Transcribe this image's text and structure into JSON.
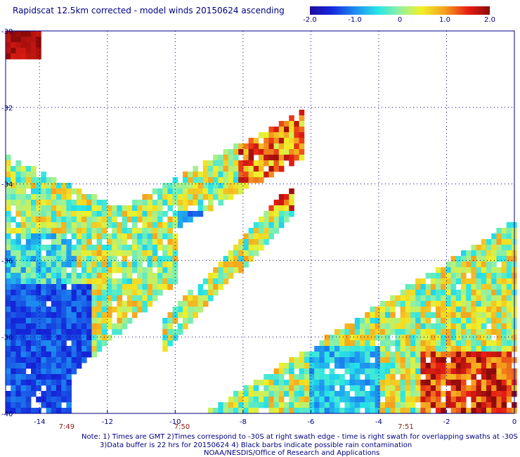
{
  "title": "Rapidscat 12.5km corrected - model winds 20150624 ascending",
  "colorbar": {
    "min": -2.0,
    "max": 2.0,
    "tick_labels": [
      "-2.0",
      "-1.0",
      "0",
      "1.0",
      "2.0"
    ],
    "tick_values": [
      -2.0,
      -1.0,
      0,
      1.0,
      2.0
    ]
  },
  "notes": {
    "line1": "Note: 1) Times are GMT 2)Times correspond to -30S at right swath edge - time is right swath for overlapping swaths at -30S",
    "line2": "3)Data buffer is 22 hrs for 20150624 4) Black barbs indicate possible rain contamination",
    "line3": "NOAA/NESDIS/Office of Research and Applications"
  },
  "chart_data": {
    "type": "heatmap",
    "title": "Rapidscat 12.5km corrected - model winds 20150624 ascending",
    "x_tick_labels": [
      "-14",
      "-12",
      "-10",
      "-8",
      "-6",
      "-4",
      "-2",
      "0"
    ],
    "x_tick_values": [
      -14,
      -12,
      -10,
      -8,
      -6,
      -4,
      -2,
      0
    ],
    "y_tick_labels": [
      "-30",
      "-32",
      "-34",
      "-36",
      "-38",
      "-40"
    ],
    "y_tick_values": [
      -30,
      -32,
      -34,
      -36,
      -38,
      -40
    ],
    "xlim": [
      -15,
      0
    ],
    "ylim": [
      -40,
      -30
    ],
    "grid": true,
    "value_range": [
      -2.0,
      2.0
    ],
    "colormap": "blue-cyan-green-yellow-red",
    "pass_times": [
      {
        "label": "7:49",
        "x": -13.2
      },
      {
        "label": "7:50",
        "x": -9.8
      },
      {
        "label": "7:51",
        "x": -3.2
      }
    ]
  }
}
